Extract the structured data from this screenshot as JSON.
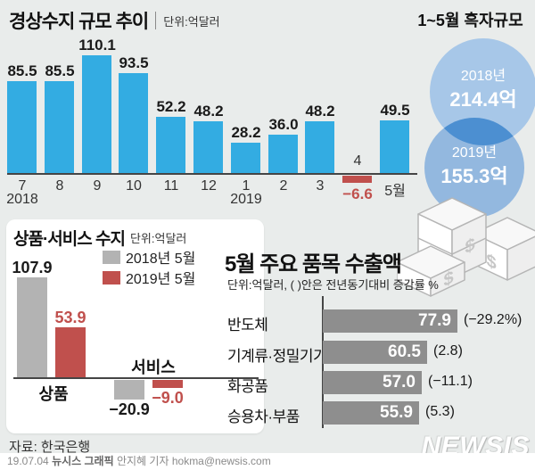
{
  "colors": {
    "bar_blue": "#33ace2",
    "negative_red": "#c0504d",
    "gray_2018": "#b3b3b3",
    "export_bar_gray": "#8e8e8e",
    "circle_2018": "#a7c7e8",
    "circle_2019": "#93b8df",
    "circle_overlap": "#4c8fd1",
    "axis_dark": "#454545"
  },
  "chart_data": [
    {
      "id": "current_account_monthly",
      "type": "bar",
      "title": "경상수지 규모 추이",
      "unit": "단위:억달러",
      "categories": [
        "7",
        "8",
        "9",
        "10",
        "11",
        "12",
        "1",
        "2",
        "3",
        "4",
        "5월"
      ],
      "values": [
        85.5,
        85.5,
        110.1,
        93.5,
        52.2,
        48.2,
        28.2,
        36.0,
        48.2,
        -6.6,
        49.5
      ],
      "value_labels": [
        "85.5",
        "85.5",
        "110.1",
        "93.5",
        "52.2",
        "48.2",
        "28.2",
        "36.0",
        "48.2",
        "−6.6",
        "49.5"
      ],
      "year_labels": [
        {
          "label": "2018",
          "index": 0
        },
        {
          "label": "2019",
          "index": 6
        }
      ],
      "ylim": [
        -10,
        115
      ],
      "grid": false,
      "legend": "none"
    },
    {
      "id": "jan_may_surplus",
      "type": "bubble",
      "title": "1~5월 흑자규모",
      "items": [
        {
          "year": "2018년",
          "value": 214.4,
          "value_label": "214.4억"
        },
        {
          "year": "2019년",
          "value": 155.3,
          "value_label": "155.3억"
        }
      ]
    },
    {
      "id": "goods_services_balance",
      "type": "grouped_bar",
      "title": "상품·서비스 수지",
      "unit": "단위:억달러",
      "categories": [
        "상품",
        "서비스"
      ],
      "legend": [
        {
          "label": "2018년 5월",
          "color": "#b3b3b3"
        },
        {
          "label": "2019년 5월",
          "color": "#c0504d"
        }
      ],
      "series": [
        {
          "name": "2018년 5월",
          "values": [
            107.9,
            -20.9
          ],
          "value_labels": [
            "107.9",
            "−20.9"
          ]
        },
        {
          "name": "2019년 5월",
          "values": [
            53.9,
            -9.0
          ],
          "value_labels": [
            "53.9",
            "−9.0"
          ]
        }
      ],
      "grid": false
    },
    {
      "id": "may_exports_by_item",
      "type": "bar",
      "title": "5월 주요 품목 수출액",
      "unit_note": "단위:억달러, ( )안은 전년동기대비 증감률 %",
      "categories": [
        "반도체",
        "기계류·정밀기기",
        "화공품",
        "승용차·부품"
      ],
      "values": [
        77.9,
        60.5,
        57.0,
        55.9
      ],
      "value_labels": [
        "77.9",
        "60.5",
        "57.0",
        "55.9"
      ],
      "change_labels": [
        "(−29.2%)",
        "(2.8)",
        "(−11.1)",
        "(5.3)"
      ],
      "orientation": "horizontal",
      "grid": false
    }
  ],
  "footer": {
    "source": "자료: 한국은행",
    "credit_date": "19.07.04",
    "credit_org": "뉴시스 그래픽",
    "credit_rest": " 안지혜 기자 hokma@newsis.com",
    "logo": "NEWSIS"
  }
}
